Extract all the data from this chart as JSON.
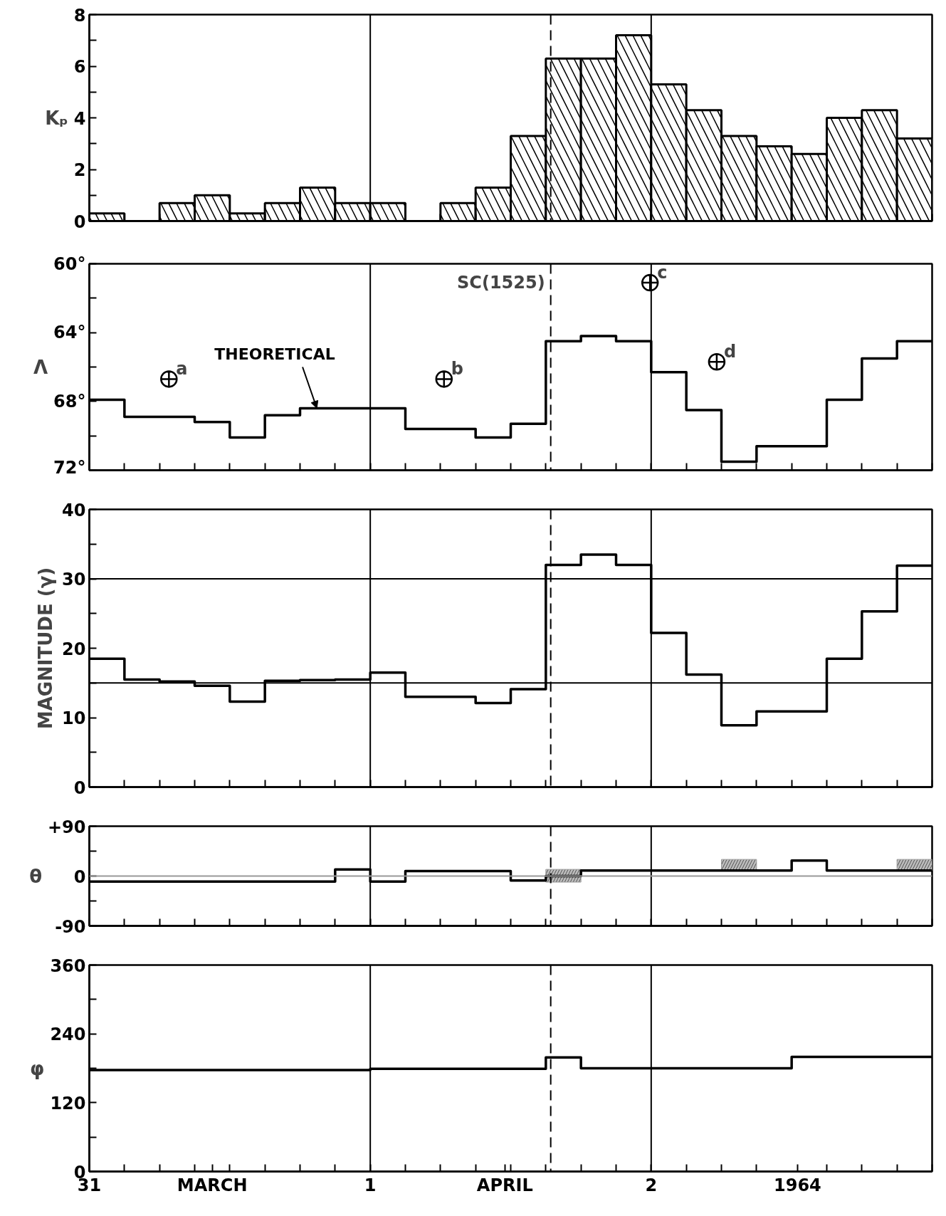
{
  "chart_data": [
    {
      "type": "histogram",
      "ylabel": "Kₚ",
      "color": "#000000",
      "bins": [
        "1964-03-31T00:00",
        "1964-03-31T03:00",
        "1964-03-31T06:00",
        "1964-03-31T09:00",
        "1964-03-31T12:00",
        "1964-03-31T15:00",
        "1964-03-31T18:00",
        "1964-03-31T21:00",
        "1964-04-01T00:00",
        "1964-04-01T03:00",
        "1964-04-01T06:00",
        "1964-04-01T09:00",
        "1964-04-01T12:00",
        "1964-04-01T15:00",
        "1964-04-01T18:00",
        "1964-04-01T21:00",
        "1964-04-02T00:00",
        "1964-04-02T03:00",
        "1964-04-02T06:00",
        "1964-04-02T09:00",
        "1964-04-02T12:00",
        "1964-04-02T15:00",
        "1964-04-02T18:00",
        "1964-04-02T21:00",
        "1964-04-03T00:00"
      ],
      "values": [
        0.3,
        0,
        0.7,
        1.0,
        0.3,
        0.7,
        1.3,
        0.7,
        0.7,
        0,
        0.7,
        1.3,
        3.3,
        6.3,
        6.3,
        7.2,
        5.3,
        4.3,
        3.3,
        2.9,
        2.6,
        4.0,
        4.3,
        3.2
      ],
      "xlim": [
        "1964-03-31T00:00",
        "1964-04-03T00:00"
      ],
      "xticks": [
        "1964-03-31T00:00",
        "1964-03-31T03:00",
        "1964-03-31T06:00",
        "1964-03-31T09:00",
        "1964-03-31T12:00",
        "1964-03-31T15:00",
        "1964-03-31T18:00",
        "1964-03-31T21:00",
        "1964-04-01T00:00",
        "1964-04-01T03:00",
        "1964-04-01T06:00",
        "1964-04-01T09:00",
        "1964-04-01T12:00",
        "1964-04-01T15:00",
        "1964-04-01T18:00",
        "1964-04-01T21:00",
        "1964-04-02T00:00",
        "1964-04-02T03:00",
        "1964-04-02T06:00",
        "1964-04-02T09:00",
        "1964-04-02T12:00",
        "1964-04-02T15:00",
        "1964-04-02T18:00",
        "1964-04-02T21:00",
        "1964-04-03T00:00"
      ],
      "ylim": [
        0,
        8
      ],
      "yticks": [
        0,
        {
          "value": 1,
          "label": null
        },
        2,
        {
          "value": 3,
          "label": null
        },
        4,
        {
          "value": 5,
          "label": null
        },
        6,
        {
          "value": 7,
          "label": null
        },
        8
      ],
      "tick_labels": "y",
      "grid": false,
      "ref_lines": [
        {
          "axis": "x",
          "value": "1964-04-01T00:00",
          "line_style": "solid"
        },
        {
          "axis": "x",
          "value": "1964-04-01T15:25",
          "line_style": "dashed"
        },
        {
          "axis": "x",
          "value": "1964-04-02T00:00",
          "line_style": "solid"
        }
      ]
    },
    {
      "type": "step",
      "ylabel": "Λ",
      "x": [
        "1964-03-31T00:00",
        "1964-03-31T03:00",
        "1964-03-31T06:00",
        "1964-03-31T09:00",
        "1964-03-31T12:00",
        "1964-03-31T15:00",
        "1964-03-31T18:00",
        "1964-03-31T21:00",
        "1964-04-01T00:00",
        "1964-04-01T03:00",
        "1964-04-01T06:00",
        "1964-04-01T09:00",
        "1964-04-01T12:00",
        "1964-04-01T15:00",
        "1964-04-01T18:00",
        "1964-04-01T21:00",
        "1964-04-02T00:00",
        "1964-04-02T03:00",
        "1964-04-02T06:00",
        "1964-04-02T09:00",
        "1964-04-02T12:00",
        "1964-04-02T15:00",
        "1964-04-02T18:00",
        "1964-04-02T21:00",
        "1964-04-03T00:00"
      ],
      "series": [
        {
          "name": "THEORETICAL",
          "color": "#000000",
          "values": [
            67.9,
            68.9,
            68.9,
            69.2,
            70.1,
            68.8,
            68.4,
            68.4,
            68.4,
            69.6,
            69.6,
            70.1,
            69.3,
            64.5,
            64.2,
            64.5,
            66.3,
            68.5,
            71.5,
            70.6,
            70.6,
            67.9,
            65.5,
            64.5,
            64.5
          ]
        },
        {
          "type": "scatter",
          "marker": "circle",
          "color": "#000000",
          "x": [
            "1964-03-31T06:48",
            "1964-04-01T06:18",
            "1964-04-01T23:54",
            "1964-04-02T05:36"
          ],
          "values": [
            66.7,
            66.7,
            61.1,
            65.7
          ]
        }
      ],
      "annotations": [
        {
          "text": "a",
          "x": "1964-03-31T06:48",
          "y": 66.7
        },
        {
          "text": "b",
          "x": "1964-04-01T06:18",
          "y": 66.7
        },
        {
          "text": "c",
          "x": "1964-04-01T23:54",
          "y": 61.1
        },
        {
          "text": "d",
          "x": "1964-04-02T05:36",
          "y": 65.7
        }
      ],
      "xlim": [
        "1964-03-31T00:00",
        "1964-04-03T00:00"
      ],
      "xticks": [
        "1964-03-31T00:00",
        "1964-03-31T03:00",
        "1964-03-31T06:00",
        "1964-03-31T09:00",
        "1964-03-31T12:00",
        "1964-03-31T15:00",
        "1964-03-31T18:00",
        "1964-03-31T21:00",
        "1964-04-01T00:00",
        "1964-04-01T03:00",
        "1964-04-01T06:00",
        "1964-04-01T09:00",
        "1964-04-01T12:00",
        "1964-04-01T15:00",
        "1964-04-01T18:00",
        "1964-04-01T21:00",
        "1964-04-02T00:00",
        "1964-04-02T03:00",
        "1964-04-02T06:00",
        "1964-04-02T09:00",
        "1964-04-02T12:00",
        "1964-04-02T15:00",
        "1964-04-02T18:00",
        "1964-04-02T21:00",
        "1964-04-03T00:00"
      ],
      "ylim": [
        72,
        60
      ],
      "yticks": [
        {
          "value": 60,
          "label": "60°"
        },
        {
          "value": 62,
          "label": null
        },
        {
          "value": 64,
          "label": "64°"
        },
        {
          "value": 66,
          "label": null
        },
        {
          "value": 68,
          "label": "68°"
        },
        {
          "value": 70,
          "label": null
        },
        {
          "value": 72,
          "label": "72°"
        }
      ],
      "tick_labels": "y",
      "grid": false,
      "ref_lines": [
        {
          "axis": "x",
          "value": "1964-04-01T00:00",
          "line_style": "solid"
        },
        {
          "axis": "x",
          "value": "1964-04-01T15:25",
          "line_style": "dashed",
          "label": "SC(1525)"
        },
        {
          "axis": "x",
          "value": "1964-04-02T00:00",
          "line_style": "solid"
        }
      ]
    },
    {
      "type": "step",
      "ylabel": "MAGNITUDE (γ)",
      "x": [
        "1964-03-31T00:00",
        "1964-03-31T03:00",
        "1964-03-31T06:00",
        "1964-03-31T09:00",
        "1964-03-31T12:00",
        "1964-03-31T15:00",
        "1964-03-31T18:00",
        "1964-03-31T21:00",
        "1964-04-01T00:00",
        "1964-04-01T03:00",
        "1964-04-01T06:00",
        "1964-04-01T09:00",
        "1964-04-01T12:00",
        "1964-04-01T15:00",
        "1964-04-01T18:00",
        "1964-04-01T21:00",
        "1964-04-02T00:00",
        "1964-04-02T03:00",
        "1964-04-02T06:00",
        "1964-04-02T09:00",
        "1964-04-02T12:00",
        "1964-04-02T15:00",
        "1964-04-02T18:00",
        "1964-04-02T21:00",
        "1964-04-03T00:00"
      ],
      "series": [
        {
          "color": "#000000",
          "values": [
            18.5,
            15.5,
            15.2,
            14.6,
            12.3,
            15.3,
            15.4,
            15.5,
            16.5,
            13.0,
            13.0,
            12.1,
            14.1,
            32.0,
            33.5,
            32.0,
            22.2,
            16.2,
            8.9,
            10.9,
            10.9,
            18.5,
            25.3,
            31.9,
            31.9
          ]
        }
      ],
      "xlim": [
        "1964-03-31T00:00",
        "1964-04-03T00:00"
      ],
      "xticks": [
        "1964-03-31T00:00",
        "1964-03-31T03:00",
        "1964-03-31T06:00",
        "1964-03-31T09:00",
        "1964-03-31T12:00",
        "1964-03-31T15:00",
        "1964-03-31T18:00",
        "1964-03-31T21:00",
        "1964-04-01T00:00",
        "1964-04-01T03:00",
        "1964-04-01T06:00",
        "1964-04-01T09:00",
        "1964-04-01T12:00",
        "1964-04-01T15:00",
        "1964-04-01T18:00",
        "1964-04-01T21:00",
        "1964-04-02T00:00",
        "1964-04-02T03:00",
        "1964-04-02T06:00",
        "1964-04-02T09:00",
        "1964-04-02T12:00",
        "1964-04-02T15:00",
        "1964-04-02T18:00",
        "1964-04-02T21:00",
        "1964-04-03T00:00"
      ],
      "ylim": [
        0,
        40
      ],
      "yticks": [
        0,
        {
          "value": 5,
          "label": null
        },
        10,
        {
          "value": 15,
          "label": null
        },
        20,
        {
          "value": 25,
          "label": null
        },
        30,
        {
          "value": 35,
          "label": null
        },
        40
      ],
      "tick_labels": "y",
      "grid": false,
      "ref_lines": [
        {
          "axis": "x",
          "value": "1964-04-01T00:00",
          "line_style": "solid"
        },
        {
          "axis": "x",
          "value": "1964-04-01T15:25",
          "line_style": "dashed"
        },
        {
          "axis": "x",
          "value": "1964-04-02T00:00",
          "line_style": "solid"
        },
        {
          "axis": "y",
          "value": 15,
          "line_style": "solid"
        },
        {
          "axis": "y",
          "value": 30,
          "line_style": "solid"
        }
      ]
    },
    {
      "type": "step",
      "ylabel": "θ",
      "x": [
        "1964-03-31T00:00",
        "1964-03-31T03:00",
        "1964-03-31T06:00",
        "1964-03-31T09:00",
        "1964-03-31T12:00",
        "1964-03-31T15:00",
        "1964-03-31T18:00",
        "1964-03-31T21:00",
        "1964-04-01T00:00",
        "1964-04-01T03:00",
        "1964-04-01T06:00",
        "1964-04-01T09:00",
        "1964-04-01T12:00",
        "1964-04-01T15:00",
        "1964-04-01T18:00",
        "1964-04-01T21:00",
        "1964-04-02T00:00",
        "1964-04-02T03:00",
        "1964-04-02T06:00",
        "1964-04-02T09:00",
        "1964-04-02T12:00",
        "1964-04-02T15:00",
        "1964-04-02T18:00",
        "1964-04-02T21:00",
        "1964-04-03T00:00"
      ],
      "series": [
        {
          "color": "#000000",
          "values": [
            -10,
            -10,
            -10,
            -10,
            -10,
            -10,
            -10,
            12,
            -10,
            9,
            9,
            9,
            -8,
            0,
            10,
            10,
            10,
            10,
            10,
            10,
            28,
            10,
            10,
            10,
            10
          ],
          "lower": [
            null,
            null,
            null,
            null,
            null,
            null,
            null,
            null,
            null,
            null,
            null,
            null,
            null,
            -11,
            -11,
            null,
            null,
            null,
            10,
            10,
            null,
            null,
            null,
            10,
            10
          ],
          "upper": [
            null,
            null,
            null,
            null,
            null,
            null,
            null,
            null,
            null,
            null,
            null,
            null,
            null,
            12,
            12,
            null,
            null,
            null,
            30,
            30,
            null,
            null,
            null,
            30,
            30
          ]
        }
      ],
      "xlim": [
        "1964-03-31T00:00",
        "1964-04-03T00:00"
      ],
      "xticks": [
        "1964-03-31T00:00",
        "1964-03-31T03:00",
        "1964-03-31T06:00",
        "1964-03-31T09:00",
        "1964-03-31T12:00",
        "1964-03-31T15:00",
        "1964-03-31T18:00",
        "1964-03-31T21:00",
        "1964-04-01T00:00",
        "1964-04-01T03:00",
        "1964-04-01T06:00",
        "1964-04-01T09:00",
        "1964-04-01T12:00",
        "1964-04-01T15:00",
        "1964-04-01T18:00",
        "1964-04-01T21:00",
        "1964-04-02T00:00",
        "1964-04-02T03:00",
        "1964-04-02T06:00",
        "1964-04-02T09:00",
        "1964-04-02T12:00",
        "1964-04-02T15:00",
        "1964-04-02T18:00",
        "1964-04-02T21:00",
        "1964-04-03T00:00"
      ],
      "ylim": [
        -90,
        90
      ],
      "yticks": [
        {
          "value": -90,
          "label": "-90"
        },
        {
          "value": -45,
          "label": null
        },
        0,
        {
          "value": 45,
          "label": null
        },
        {
          "value": 90,
          "label": "+90"
        }
      ],
      "tick_labels": "y",
      "grid": false,
      "ref_lines": [
        {
          "axis": "x",
          "value": "1964-04-01T00:00",
          "line_style": "solid"
        },
        {
          "axis": "x",
          "value": "1964-04-01T15:25",
          "line_style": "dashed"
        },
        {
          "axis": "x",
          "value": "1964-04-02T00:00",
          "line_style": "solid"
        },
        {
          "axis": "y",
          "value": 0,
          "line_style": "solid",
          "color": "#999999"
        }
      ]
    },
    {
      "type": "step",
      "ylabel": "φ",
      "x": [
        "1964-03-31T00:00",
        "1964-03-31T03:00",
        "1964-03-31T06:00",
        "1964-03-31T09:00",
        "1964-03-31T12:00",
        "1964-03-31T15:00",
        "1964-03-31T18:00",
        "1964-03-31T21:00",
        "1964-04-01T00:00",
        "1964-04-01T03:00",
        "1964-04-01T06:00",
        "1964-04-01T09:00",
        "1964-04-01T12:00",
        "1964-04-01T15:00",
        "1964-04-01T18:00",
        "1964-04-01T21:00",
        "1964-04-02T00:00",
        "1964-04-02T03:00",
        "1964-04-02T06:00",
        "1964-04-02T09:00",
        "1964-04-02T12:00",
        "1964-04-02T15:00",
        "1964-04-02T18:00",
        "1964-04-02T21:00",
        "1964-04-03T00:00"
      ],
      "series": [
        {
          "color": "#000000",
          "values": [
            177,
            177,
            177,
            177,
            177,
            177,
            177,
            177,
            179,
            179,
            179,
            179,
            179,
            199,
            180,
            180,
            180,
            180,
            180,
            180,
            200,
            200,
            200,
            200,
            200
          ]
        }
      ],
      "xlim": [
        "1964-03-31T00:00",
        "1964-04-03T00:00"
      ],
      "xticks": [
        {
          "value": "1964-03-31T00:00",
          "label": "31"
        },
        {
          "value": "1964-03-31T03:00",
          "label": null
        },
        {
          "value": "1964-03-31T06:00",
          "label": null
        },
        {
          "value": "1964-03-31T09:00",
          "label": null
        },
        {
          "value": "1964-03-31T10:30",
          "label": "MARCH"
        },
        {
          "value": "1964-03-31T12:00",
          "label": null
        },
        {
          "value": "1964-03-31T15:00",
          "label": null
        },
        {
          "value": "1964-03-31T18:00",
          "label": null
        },
        {
          "value": "1964-03-31T21:00",
          "label": null
        },
        {
          "value": "1964-04-01T00:00",
          "label": "1"
        },
        {
          "value": "1964-04-01T03:00",
          "label": null
        },
        {
          "value": "1964-04-01T06:00",
          "label": null
        },
        {
          "value": "1964-04-01T09:00",
          "label": null
        },
        {
          "value": "1964-04-01T11:30",
          "label": "APRIL"
        },
        {
          "value": "1964-04-01T12:00",
          "label": null
        },
        {
          "value": "1964-04-01T15:00",
          "label": null
        },
        {
          "value": "1964-04-01T18:00",
          "label": null
        },
        {
          "value": "1964-04-01T21:00",
          "label": null
        },
        {
          "value": "1964-04-02T00:00",
          "label": "2"
        },
        {
          "value": "1964-04-02T03:00",
          "label": null
        },
        {
          "value": "1964-04-02T06:00",
          "label": null
        },
        {
          "value": "1964-04-02T09:00",
          "label": null
        },
        {
          "value": "1964-04-02T12:30",
          "label": "1964"
        },
        {
          "value": "1964-04-02T15:00",
          "label": null
        },
        {
          "value": "1964-04-02T18:00",
          "label": null
        },
        {
          "value": "1964-04-02T21:00",
          "label": null
        },
        {
          "value": "1964-04-03T00:00",
          "label": null
        }
      ],
      "ylim": [
        0,
        360
      ],
      "yticks": [
        0,
        {
          "value": 60,
          "label": null
        },
        120,
        {
          "value": 180,
          "label": null
        },
        240,
        {
          "value": 300,
          "label": null
        },
        360
      ],
      "grid": false,
      "ref_lines": [
        {
          "axis": "x",
          "value": "1964-04-01T00:00",
          "line_style": "solid"
        },
        {
          "axis": "x",
          "value": "1964-04-01T15:25",
          "line_style": "dashed"
        },
        {
          "axis": "x",
          "value": "1964-04-02T00:00",
          "line_style": "solid"
        }
      ]
    }
  ]
}
